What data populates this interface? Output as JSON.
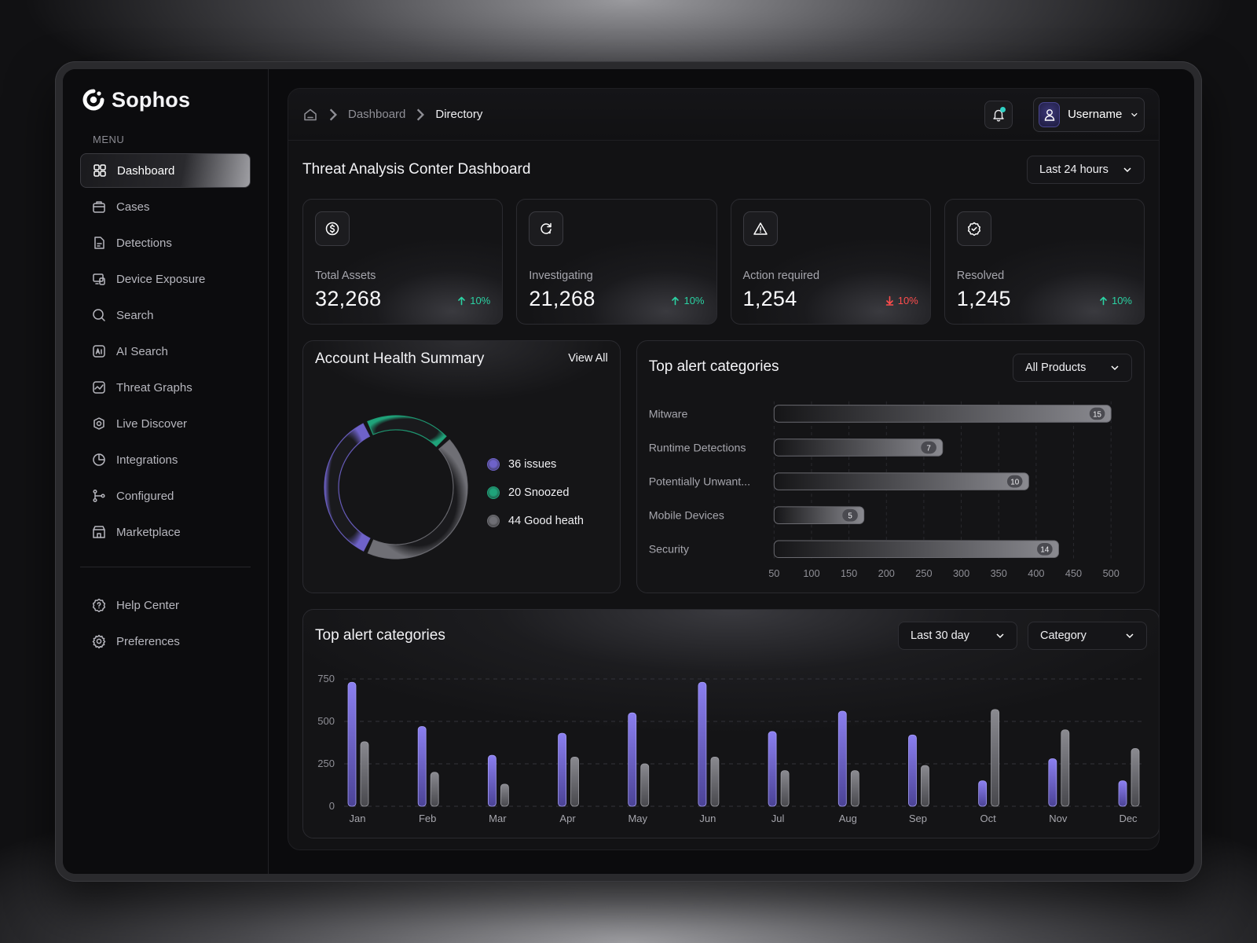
{
  "brand": {
    "name": "Sophos"
  },
  "sidebar": {
    "menu_title": "MENU",
    "items": [
      {
        "label": "Dashboard",
        "icon": "grid-icon",
        "active": true
      },
      {
        "label": "Cases",
        "icon": "briefcase-icon"
      },
      {
        "label": "Detections",
        "icon": "document-icon"
      },
      {
        "label": "Device Exposure",
        "icon": "devices-icon"
      },
      {
        "label": "Search",
        "icon": "search-icon"
      },
      {
        "label": "AI Search",
        "icon": "ai-icon"
      },
      {
        "label": "Threat Graphs",
        "icon": "graph-icon"
      },
      {
        "label": "Live Discover",
        "icon": "discover-icon"
      },
      {
        "label": "Integrations",
        "icon": "pie-icon"
      },
      {
        "label": "Configured",
        "icon": "git-branch-icon"
      },
      {
        "label": "Marketplace",
        "icon": "store-icon"
      }
    ],
    "footer_items": [
      {
        "label": "Help Center",
        "icon": "help-icon"
      },
      {
        "label": "Preferences",
        "icon": "gear-icon"
      }
    ]
  },
  "header": {
    "breadcrumb": [
      "Dashboard",
      "Directory"
    ],
    "username": "Username"
  },
  "page": {
    "title": "Threat Analysis Conter Dashboard",
    "range": "Last 24 hours"
  },
  "stats": [
    {
      "label": "Total Assets",
      "value": "32,268",
      "delta": "10%",
      "trend": "up",
      "icon": "dollar-icon"
    },
    {
      "label": "Investigating",
      "value": "21,268",
      "delta": "10%",
      "trend": "up",
      "icon": "refresh-icon"
    },
    {
      "label": "Action required",
      "value": "1,254",
      "delta": "10%",
      "trend": "down",
      "icon": "warning-icon"
    },
    {
      "label": "Resolved",
      "value": "1,245",
      "delta": "10%",
      "trend": "up",
      "icon": "badge-check-icon"
    }
  ],
  "health": {
    "title": "Account Health Summary",
    "view_all": "View All",
    "legend": [
      {
        "label": "36 issues",
        "value": 36,
        "color": "#6e62c9"
      },
      {
        "label": "20 Snoozed",
        "value": 20,
        "color": "#1fa37a"
      },
      {
        "label": "44 Good heath",
        "value": 44,
        "color": "#6f6f75"
      }
    ]
  },
  "alerts": {
    "title": "Top alert categories",
    "filter": "All Products"
  },
  "monthly": {
    "title": "Top alert categories",
    "filter_range": "Last 30 day",
    "filter_category": "Category"
  },
  "colors": {
    "accent_purple": "#7a6ee0",
    "accent_green": "#1fb584",
    "up": "#2bd2a3",
    "down": "#ff4d4d"
  },
  "chart_data": [
    {
      "type": "bar",
      "orientation": "horizontal",
      "title": "Top alert categories",
      "categories": [
        "Mitware",
        "Runtime Detections",
        "Potentially Unwant...",
        "Mobile Devices",
        "Security"
      ],
      "values": [
        500,
        275,
        390,
        170,
        430
      ],
      "data_labels": [
        "15",
        "7",
        "10",
        "5",
        "14"
      ],
      "xticks": [
        50,
        100,
        150,
        200,
        250,
        300,
        350,
        400,
        450,
        500
      ],
      "xlim": [
        50,
        500
      ],
      "grid": true
    },
    {
      "type": "bar",
      "title": "Top alert categories",
      "categories": [
        "Jan",
        "Feb",
        "Mar",
        "Apr",
        "May",
        "Jun",
        "Jul",
        "Aug",
        "Sep",
        "Oct",
        "Nov",
        "Dec"
      ],
      "series": [
        {
          "values": [
            730,
            470,
            300,
            430,
            550,
            730,
            440,
            560,
            420,
            150,
            280,
            150
          ],
          "color": "#7a6ee0"
        },
        {
          "values": [
            380,
            200,
            130,
            290,
            250,
            290,
            210,
            210,
            240,
            570,
            450,
            340
          ],
          "color": "#7a7a80"
        }
      ],
      "yticks": [
        0,
        250,
        500,
        750
      ],
      "ylim": [
        0,
        750
      ],
      "grid": true
    }
  ]
}
